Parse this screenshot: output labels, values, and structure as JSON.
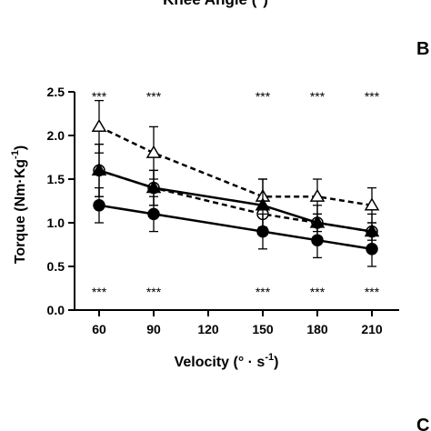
{
  "top_cut_label": "Knee Angle (°)",
  "panel_letters": {
    "right_top": "B",
    "right_bottom": "C"
  },
  "colors": {
    "ink": "#000000",
    "background": "#ffffff"
  },
  "chart_data": {
    "type": "line",
    "x": [
      60,
      90,
      150,
      180,
      210
    ],
    "xticks": [
      "60",
      "90",
      "120",
      "150",
      "180",
      "210"
    ],
    "xlim": [
      45,
      225
    ],
    "ylim": [
      0,
      2.5
    ],
    "yticks": [
      "0.0",
      "0.5",
      "1.0",
      "1.5",
      "2.0",
      "2.5"
    ],
    "xlabel": "Velocity (° · s",
    "xlabel_sup": "-1",
    "xlabel_close": ")",
    "ylabel": "Torque (Nm·Kg",
    "ylabel_sup": "-1",
    "ylabel_close": ")",
    "grid": false,
    "series": [
      {
        "marker": "open-triangle",
        "line": "dashed",
        "values": [
          2.1,
          1.8,
          1.3,
          1.3,
          1.2
        ],
        "err": [
          0.3,
          0.3,
          0.2,
          0.2,
          0.2
        ]
      },
      {
        "marker": "open-circle",
        "line": "dashed",
        "values": [
          1.6,
          1.4,
          1.1,
          1.0,
          0.9
        ],
        "err": [
          0.3,
          0.2,
          0.15,
          0.1,
          0.1
        ]
      },
      {
        "marker": "filled-triangle",
        "line": "solid",
        "values": [
          1.6,
          1.4,
          1.2,
          1.0,
          0.9
        ],
        "err": [
          0.3,
          0.2,
          0.3,
          0.2,
          0.2
        ]
      },
      {
        "marker": "filled-circle",
        "line": "solid",
        "values": [
          1.2,
          1.1,
          0.9,
          0.8,
          0.7
        ],
        "err": [
          0.2,
          0.2,
          0.2,
          0.2,
          0.2
        ]
      }
    ],
    "annotations_top": [
      "***",
      "***",
      "***",
      "***",
      "***"
    ],
    "annotations_bottom": [
      "***",
      "***",
      "***",
      "***",
      "***"
    ]
  }
}
